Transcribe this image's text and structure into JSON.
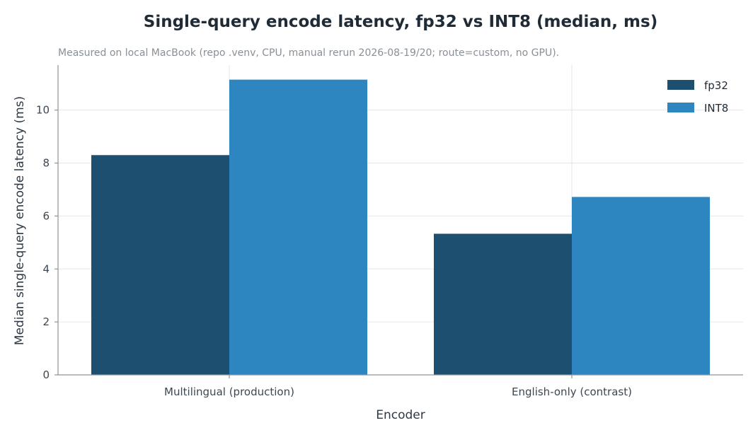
{
  "chart_data": {
    "type": "bar",
    "title": "Single-query encode latency, fp32 vs INT8 (median, ms)",
    "subtitle": "Measured on local MacBook (repo .venv, CPU, manual rerun 2026-08-19/20; route=custom, no GPU).",
    "xlabel": "Encoder",
    "ylabel": "Median single-query encode latency (ms)",
    "categories": [
      "Multilingual (production)",
      "English-only (contrast)"
    ],
    "series": [
      {
        "name": "fp32",
        "color": "#1c4f70",
        "values": [
          8.3,
          5.33
        ]
      },
      {
        "name": "INT8",
        "color": "#2e86c1",
        "values": [
          11.15,
          6.72
        ]
      }
    ],
    "ylim": [
      0,
      11.7
    ],
    "yticks": [
      0,
      2,
      4,
      6,
      8,
      10
    ],
    "grid": true,
    "legend": "top-right"
  }
}
